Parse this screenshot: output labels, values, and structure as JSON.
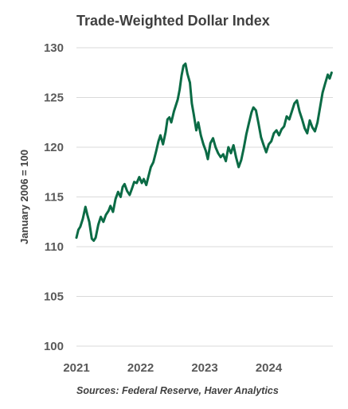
{
  "chart_data": {
    "type": "line",
    "title": "Trade-Weighted  Dollar  Index",
    "ylabel": "January 2006 = 100",
    "xlabel": "",
    "source": "Sources: Federal Reserve, Haver Analytics",
    "ylim": [
      100,
      130
    ],
    "yticks": [
      "100",
      "105",
      "110",
      "115",
      "120",
      "125",
      "130"
    ],
    "xlim": [
      2021.0,
      2025.0
    ],
    "xticks": [
      "2021",
      "2022",
      "2023",
      "2024"
    ],
    "grid": true,
    "colors": {
      "line": "#0b6b45",
      "grid": "#d9d9d9",
      "text": "#595959"
    },
    "series": [
      {
        "values": [
          [
            2021.0,
            110.9
          ],
          [
            2021.03,
            111.7
          ],
          [
            2021.06,
            112.0
          ],
          [
            2021.1,
            112.8
          ],
          [
            2021.14,
            114.0
          ],
          [
            2021.17,
            113.2
          ],
          [
            2021.2,
            112.5
          ],
          [
            2021.24,
            110.8
          ],
          [
            2021.27,
            110.6
          ],
          [
            2021.3,
            110.9
          ],
          [
            2021.34,
            112.2
          ],
          [
            2021.38,
            113.0
          ],
          [
            2021.42,
            112.5
          ],
          [
            2021.46,
            113.2
          ],
          [
            2021.5,
            113.6
          ],
          [
            2021.53,
            114.1
          ],
          [
            2021.57,
            113.5
          ],
          [
            2021.61,
            114.8
          ],
          [
            2021.65,
            115.5
          ],
          [
            2021.69,
            115.0
          ],
          [
            2021.72,
            116.0
          ],
          [
            2021.75,
            116.3
          ],
          [
            2021.79,
            115.6
          ],
          [
            2021.83,
            115.2
          ],
          [
            2021.87,
            115.9
          ],
          [
            2021.9,
            116.5
          ],
          [
            2021.94,
            116.4
          ],
          [
            2021.98,
            117.0
          ],
          [
            2022.02,
            116.4
          ],
          [
            2022.05,
            116.8
          ],
          [
            2022.09,
            116.2
          ],
          [
            2022.12,
            117.0
          ],
          [
            2022.16,
            118.0
          ],
          [
            2022.2,
            118.5
          ],
          [
            2022.24,
            119.5
          ],
          [
            2022.28,
            120.6
          ],
          [
            2022.31,
            121.2
          ],
          [
            2022.35,
            120.3
          ],
          [
            2022.39,
            121.5
          ],
          [
            2022.42,
            122.8
          ],
          [
            2022.45,
            123.0
          ],
          [
            2022.48,
            122.5
          ],
          [
            2022.52,
            123.6
          ],
          [
            2022.55,
            124.2
          ],
          [
            2022.58,
            124.8
          ],
          [
            2022.61,
            125.8
          ],
          [
            2022.64,
            127.2
          ],
          [
            2022.67,
            128.2
          ],
          [
            2022.7,
            128.4
          ],
          [
            2022.73,
            127.4
          ],
          [
            2022.77,
            126.5
          ],
          [
            2022.8,
            124.4
          ],
          [
            2022.83,
            123.3
          ],
          [
            2022.87,
            121.7
          ],
          [
            2022.9,
            122.5
          ],
          [
            2022.94,
            121.2
          ],
          [
            2022.98,
            120.3
          ],
          [
            2023.02,
            119.6
          ],
          [
            2023.05,
            118.8
          ],
          [
            2023.09,
            120.4
          ],
          [
            2023.13,
            120.9
          ],
          [
            2023.17,
            120.0
          ],
          [
            2023.21,
            119.4
          ],
          [
            2023.25,
            119.0
          ],
          [
            2023.29,
            119.3
          ],
          [
            2023.33,
            118.6
          ],
          [
            2023.37,
            120.0
          ],
          [
            2023.41,
            119.4
          ],
          [
            2023.45,
            120.2
          ],
          [
            2023.49,
            119.0
          ],
          [
            2023.53,
            118.0
          ],
          [
            2023.57,
            118.7
          ],
          [
            2023.61,
            119.9
          ],
          [
            2023.65,
            121.3
          ],
          [
            2023.69,
            122.4
          ],
          [
            2023.73,
            123.5
          ],
          [
            2023.76,
            124.0
          ],
          [
            2023.8,
            123.7
          ],
          [
            2023.84,
            122.4
          ],
          [
            2023.88,
            121.0
          ],
          [
            2023.92,
            120.2
          ],
          [
            2023.96,
            119.5
          ],
          [
            2024.0,
            120.3
          ],
          [
            2024.04,
            120.6
          ],
          [
            2024.08,
            121.4
          ],
          [
            2024.12,
            121.7
          ],
          [
            2024.16,
            121.2
          ],
          [
            2024.2,
            121.8
          ],
          [
            2024.24,
            122.1
          ],
          [
            2024.28,
            123.1
          ],
          [
            2024.32,
            122.8
          ],
          [
            2024.36,
            123.6
          ],
          [
            2024.4,
            124.4
          ],
          [
            2024.44,
            124.7
          ],
          [
            2024.48,
            123.6
          ],
          [
            2024.52,
            122.8
          ],
          [
            2024.56,
            121.9
          ],
          [
            2024.6,
            121.4
          ],
          [
            2024.64,
            122.7
          ],
          [
            2024.68,
            122.0
          ],
          [
            2024.72,
            121.6
          ],
          [
            2024.76,
            122.5
          ],
          [
            2024.8,
            124.0
          ],
          [
            2024.84,
            125.5
          ],
          [
            2024.88,
            126.4
          ],
          [
            2024.92,
            127.3
          ],
          [
            2024.95,
            126.9
          ],
          [
            2024.98,
            127.5
          ]
        ]
      }
    ]
  }
}
